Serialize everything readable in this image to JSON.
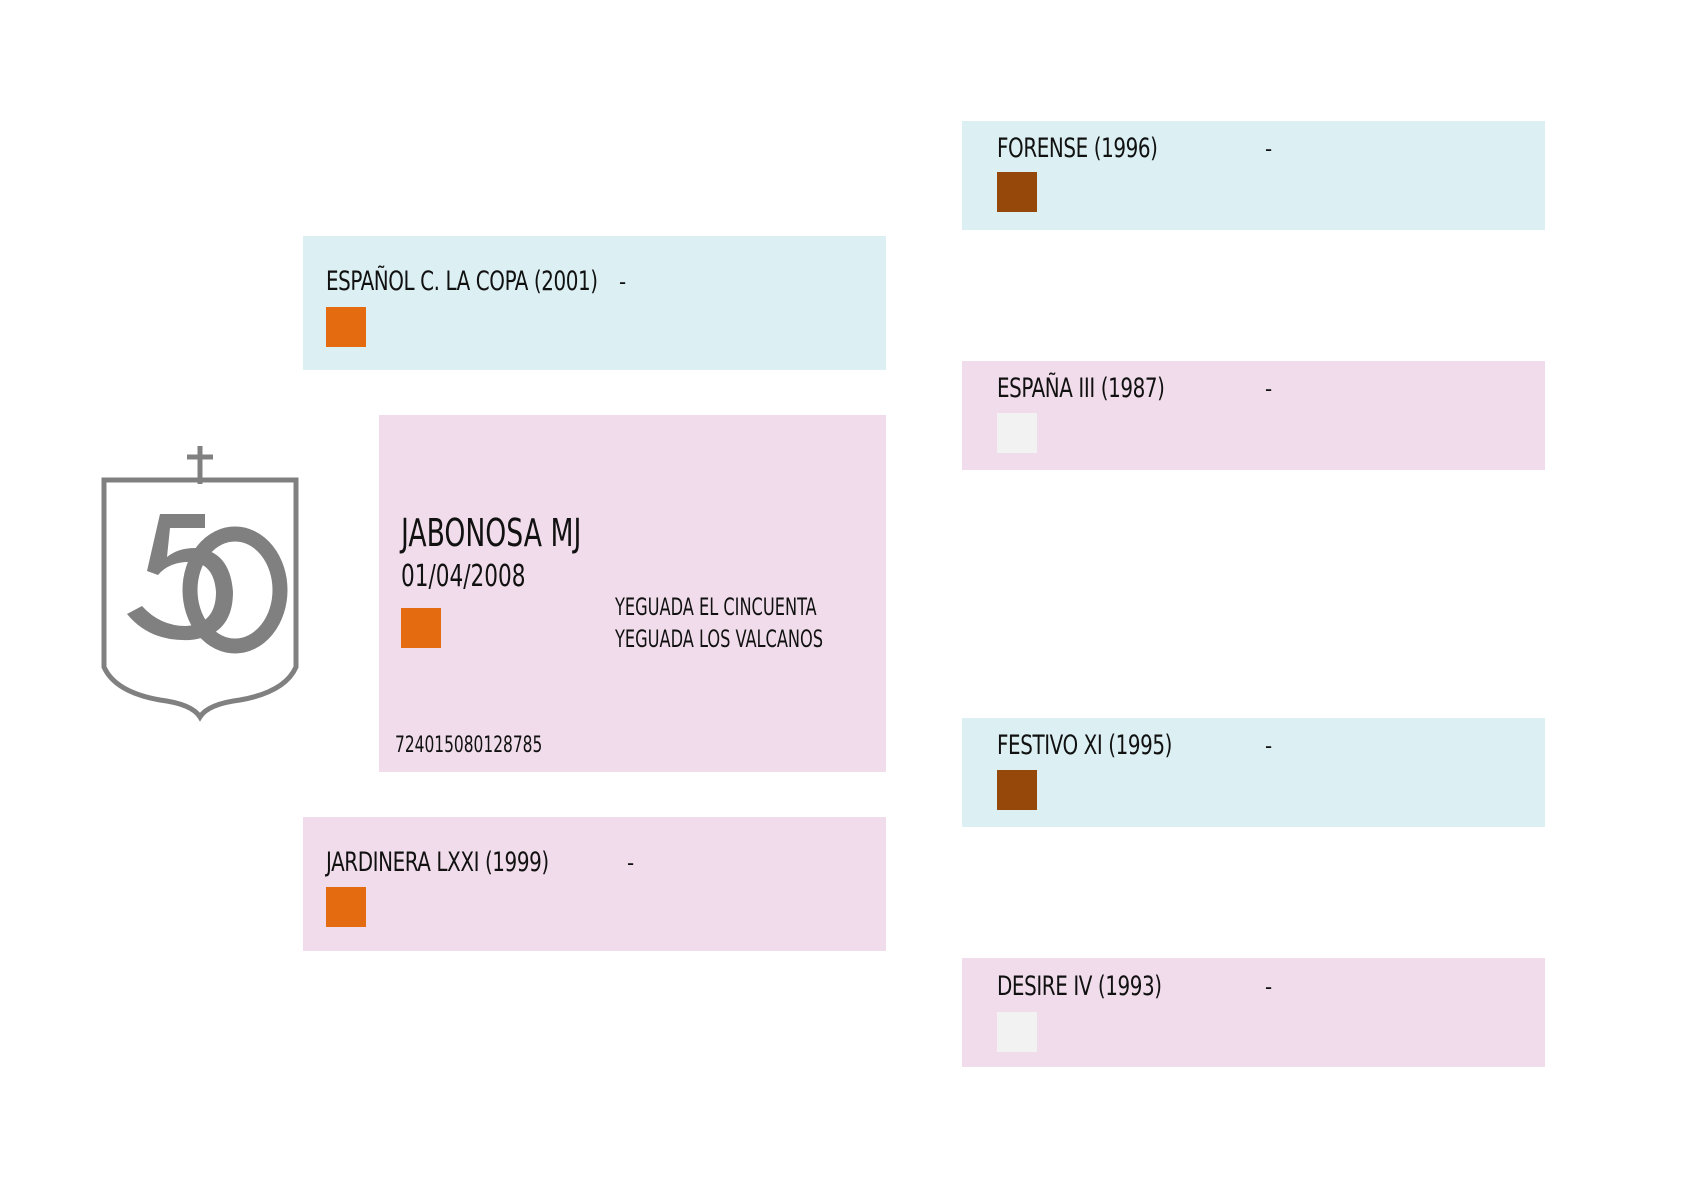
{
  "logo": {
    "text": "50"
  },
  "subject": {
    "name": "JABONOSA MJ",
    "birth_date": "01/04/2008",
    "breeder": "YEGUADA EL CINCUENTA",
    "owner": "YEGUADA LOS VALCANOS",
    "chip": "724015080128785",
    "coat_color": "#e56b10"
  },
  "sire": {
    "name": "ESPAÑOL C. LA COPA (2001)",
    "extra": "-",
    "coat_color": "#e56b10"
  },
  "dam": {
    "name": "JARDINERA LXXI (1999)",
    "extra": "-",
    "coat_color": "#e56b10"
  },
  "grandparents": [
    {
      "name": "FORENSE (1996)",
      "extra": "-",
      "coat_color": "#96470a"
    },
    {
      "name": "ESPAÑA III (1987)",
      "extra": "-",
      "coat_color": "#f2f2f2"
    },
    {
      "name": "FESTIVO XI (1995)",
      "extra": "-",
      "coat_color": "#96470a"
    },
    {
      "name": "DESIRE IV (1993)",
      "extra": "-",
      "coat_color": "#f2f2f2"
    }
  ],
  "colors": {
    "sire_bg": "#dcf0f4",
    "dam_bg": "#f0dcea",
    "logo": "#808080"
  }
}
